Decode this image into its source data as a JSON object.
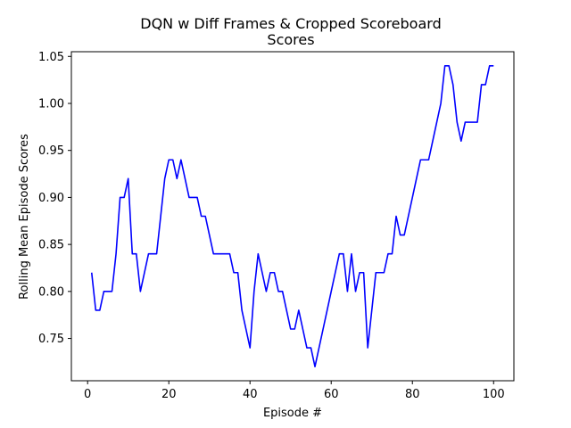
{
  "chart_data": {
    "type": "line",
    "title_lines": [
      "DQN w Diff Frames & Cropped Scoreboard",
      "Scores"
    ],
    "xlabel": "Episode #",
    "ylabel": "Rolling Mean Episode Scores",
    "xlim": [
      -4.0,
      105.0
    ],
    "ylim": [
      0.705,
      1.055
    ],
    "xticks": [
      0,
      20,
      40,
      60,
      80,
      100
    ],
    "xtick_labels": [
      "0",
      "20",
      "40",
      "60",
      "80",
      "100"
    ],
    "yticks": [
      0.75,
      0.8,
      0.85,
      0.9,
      0.95,
      1.0,
      1.05
    ],
    "ytick_labels": [
      "0.75",
      "0.80",
      "0.85",
      "0.90",
      "0.95",
      "1.00",
      "1.05"
    ],
    "grid": false,
    "series": [
      {
        "color": "#0000ff",
        "x": [
          1,
          2,
          3,
          4,
          5,
          6,
          7,
          8,
          9,
          10,
          11,
          12,
          13,
          14,
          15,
          16,
          17,
          18,
          19,
          20,
          21,
          22,
          23,
          24,
          25,
          26,
          27,
          28,
          29,
          30,
          31,
          32,
          33,
          34,
          35,
          36,
          37,
          38,
          39,
          40,
          41,
          42,
          43,
          44,
          45,
          46,
          47,
          48,
          49,
          50,
          51,
          52,
          53,
          54,
          55,
          56,
          57,
          58,
          59,
          60,
          61,
          62,
          63,
          64,
          65,
          66,
          67,
          68,
          69,
          70,
          71,
          72,
          73,
          74,
          75,
          76,
          77,
          78,
          79,
          80,
          81,
          82,
          83,
          84,
          85,
          86,
          87,
          88,
          89,
          90,
          91,
          92,
          93,
          94,
          95,
          96,
          97,
          98,
          99,
          100
        ],
        "y": [
          0.82,
          0.78,
          0.78,
          0.8,
          0.8,
          0.8,
          0.84,
          0.9,
          0.9,
          0.92,
          0.84,
          0.84,
          0.8,
          0.82,
          0.84,
          0.84,
          0.84,
          0.88,
          0.92,
          0.94,
          0.94,
          0.92,
          0.94,
          0.92,
          0.9,
          0.9,
          0.9,
          0.88,
          0.88,
          0.86,
          0.84,
          0.84,
          0.84,
          0.84,
          0.84,
          0.82,
          0.82,
          0.78,
          0.76,
          0.74,
          0.8,
          0.84,
          0.82,
          0.8,
          0.82,
          0.82,
          0.8,
          0.8,
          0.78,
          0.76,
          0.76,
          0.78,
          0.76,
          0.74,
          0.74,
          0.72,
          0.74,
          0.76,
          0.78,
          0.8,
          0.82,
          0.84,
          0.84,
          0.8,
          0.84,
          0.8,
          0.82,
          0.82,
          0.74,
          0.78,
          0.82,
          0.82,
          0.82,
          0.84,
          0.84,
          0.88,
          0.86,
          0.86,
          0.88,
          0.9,
          0.92,
          0.94,
          0.94,
          0.94,
          0.96,
          0.98,
          1.0,
          1.04,
          1.04,
          1.02,
          0.98,
          0.96,
          0.98,
          0.98,
          0.98,
          0.98,
          1.02,
          1.02,
          1.04,
          1.04
        ]
      }
    ]
  }
}
